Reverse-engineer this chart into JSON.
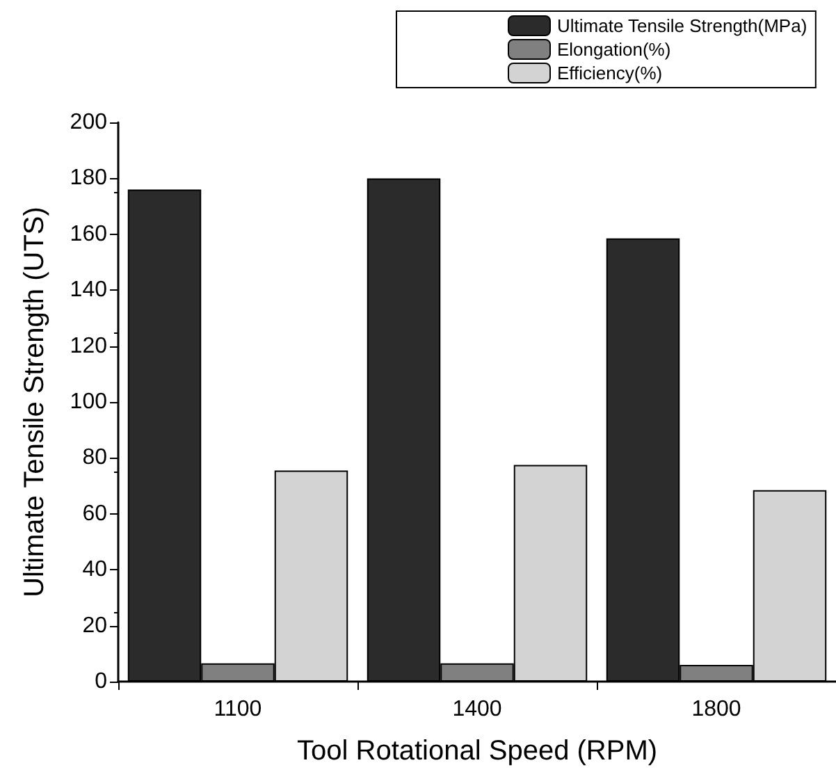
{
  "chart_data": {
    "type": "bar",
    "xlabel": "Tool Rotational Speed (RPM)",
    "ylabel": "Ultimate Tensile Strength (UTS)",
    "categories": [
      "1100",
      "1400",
      "1800"
    ],
    "series": [
      {
        "name": "Ultimate Tensile Strength(MPa)",
        "color": "#2b2b2b",
        "values": [
          176,
          180,
          158.5
        ]
      },
      {
        "name": "Elongation(%)",
        "color": "#808080",
        "values": [
          6.5,
          6.5,
          6
        ]
      },
      {
        "name": "Efficiency(%)",
        "color": "#d3d3d3",
        "values": [
          75.5,
          77.5,
          68.5
        ]
      }
    ],
    "ylim": [
      0,
      200
    ],
    "yticks": [
      0,
      20,
      40,
      60,
      80,
      100,
      120,
      140,
      160,
      180,
      200
    ],
    "grid": false,
    "legend": "top"
  }
}
